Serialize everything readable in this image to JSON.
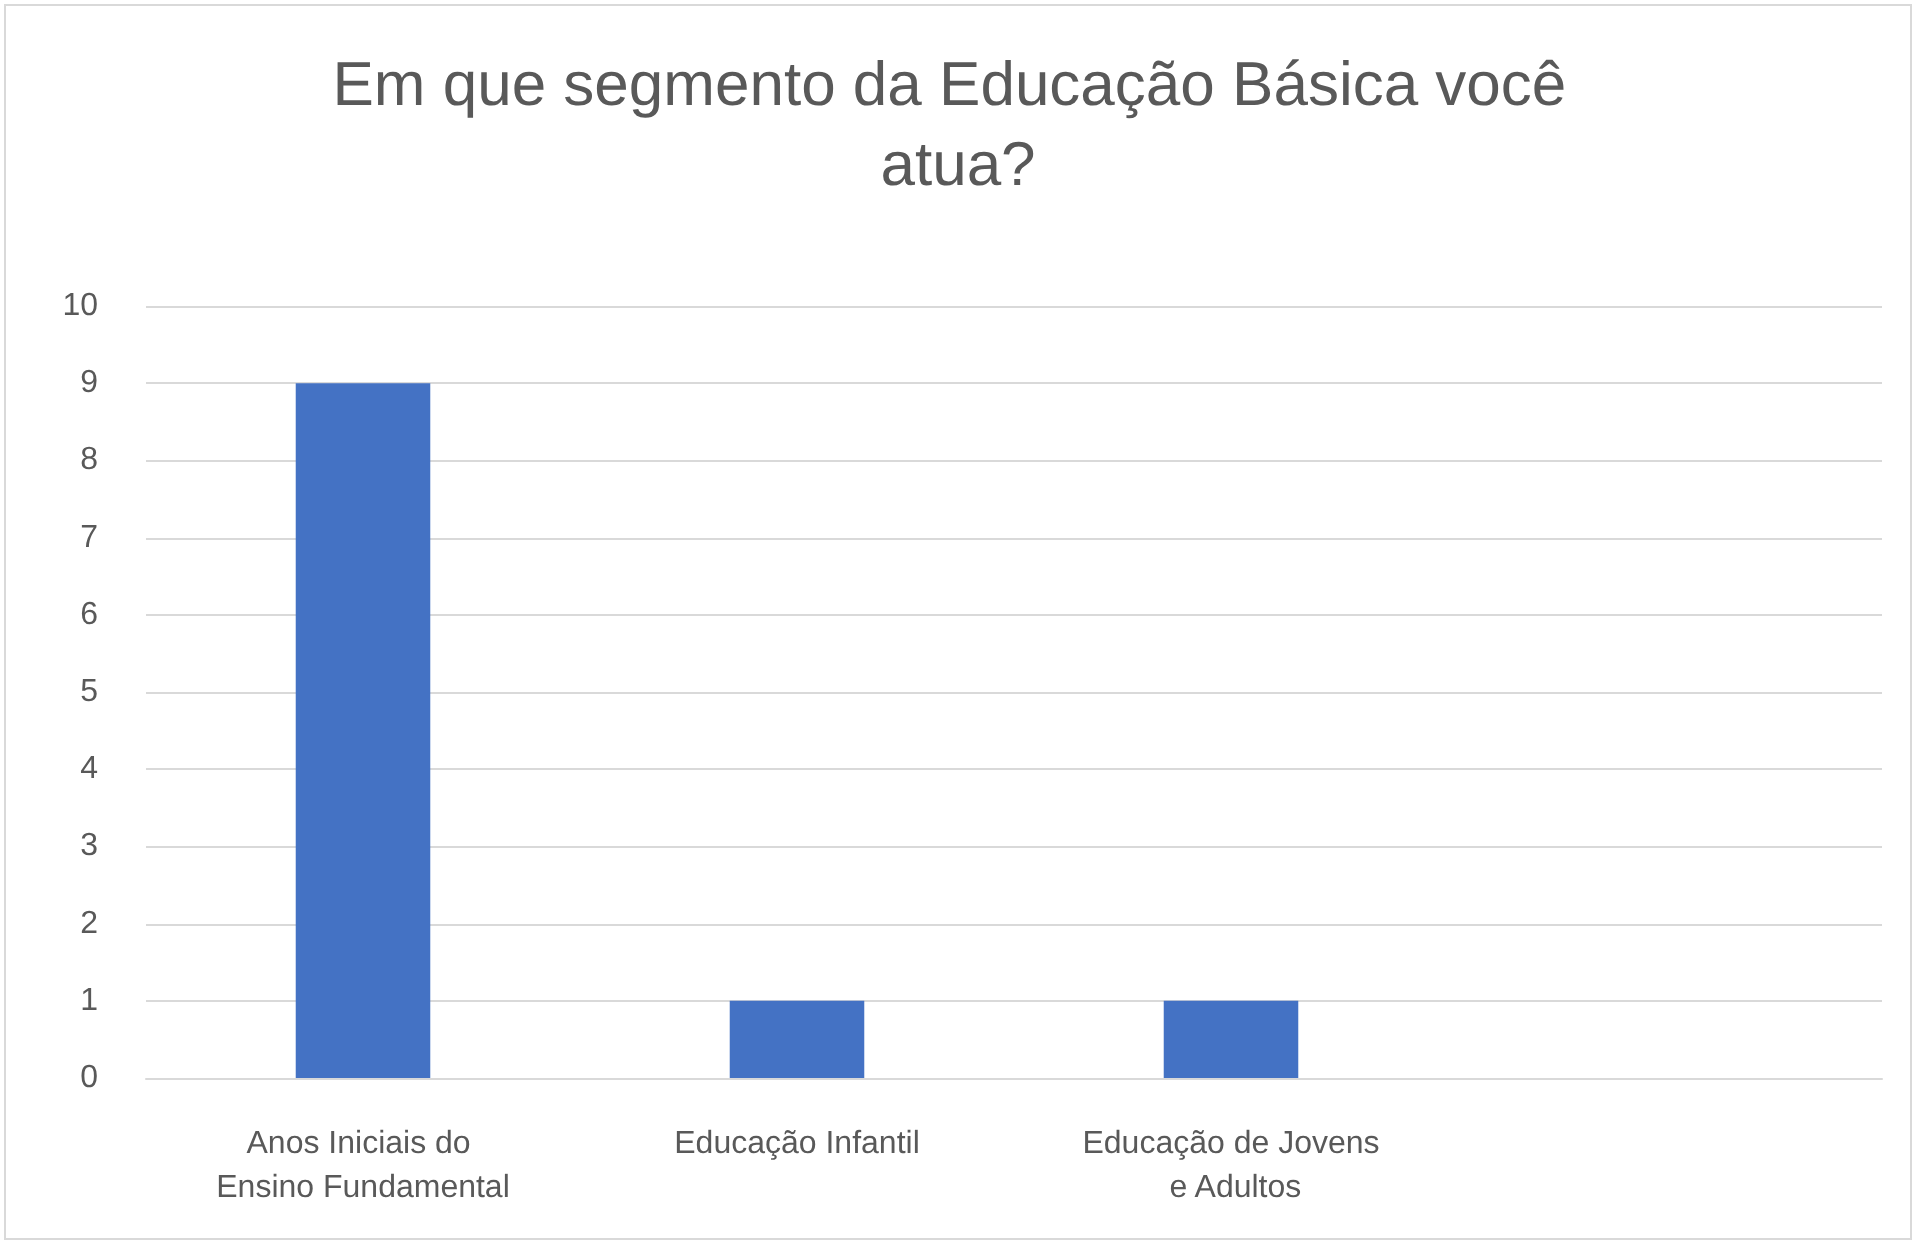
{
  "chart_data": {
    "type": "bar",
    "title": "Em que segmento da Educação Básica você atua?",
    "categories": [
      "Anos Iniciais do Ensino Fundamental",
      "Educação Infantil",
      "Educação de Jovens e Adultos",
      null
    ],
    "values": [
      9,
      1,
      1,
      null
    ],
    "color": "#4472c4",
    "ylim": [
      0,
      10
    ],
    "yticks": [
      0,
      1,
      2,
      3,
      4,
      5,
      6,
      7,
      8,
      9,
      10
    ],
    "grid": "y"
  }
}
